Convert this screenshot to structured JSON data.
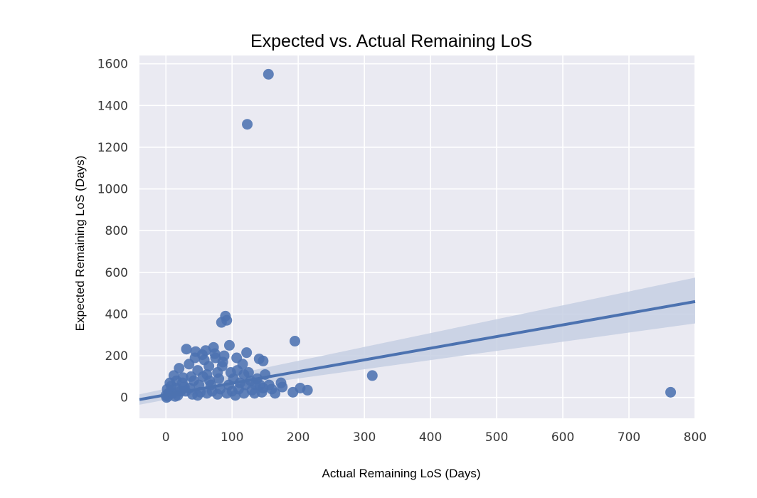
{
  "chart_data": {
    "type": "scatter",
    "title": "Expected vs. Actual Remaining LoS",
    "xlabel": "Actual Remaining LoS (Days)",
    "ylabel": "Expected Remaining LoS (Days)",
    "xlim": [
      -40,
      800
    ],
    "ylim": [
      -100,
      1640
    ],
    "xticks": [
      0,
      100,
      200,
      300,
      400,
      500,
      600,
      700,
      800
    ],
    "yticks": [
      0,
      200,
      400,
      600,
      800,
      1000,
      1200,
      1400,
      1600
    ],
    "grid": true,
    "colors": {
      "background": "#eaeaf2",
      "grid": "#ffffff",
      "points": "#4c72b0",
      "regression": "#4c72b0",
      "confidence_band": "#c6cfe3"
    },
    "points": [
      [
        155,
        1550
      ],
      [
        123,
        1310
      ],
      [
        195,
        270
      ],
      [
        312,
        105
      ],
      [
        763,
        25
      ],
      [
        90,
        390
      ],
      [
        92,
        370
      ],
      [
        84,
        360
      ],
      [
        96,
        250
      ],
      [
        122,
        215
      ],
      [
        31,
        232
      ],
      [
        45,
        220
      ],
      [
        72,
        240
      ],
      [
        60,
        225
      ],
      [
        55,
        205
      ],
      [
        141,
        185
      ],
      [
        147,
        175
      ],
      [
        107,
        190
      ],
      [
        116,
        160
      ],
      [
        203,
        45
      ],
      [
        214,
        35
      ],
      [
        192,
        25
      ],
      [
        174,
        70
      ],
      [
        176,
        50
      ],
      [
        160,
        40
      ],
      [
        165,
        20
      ],
      [
        156,
        60
      ],
      [
        135,
        60
      ],
      [
        130,
        35
      ],
      [
        145,
        25
      ],
      [
        142,
        60
      ],
      [
        120,
        60
      ],
      [
        110,
        40
      ],
      [
        118,
        20
      ],
      [
        102,
        90
      ],
      [
        100,
        30
      ],
      [
        105,
        10
      ],
      [
        112,
        70
      ],
      [
        125,
        120
      ],
      [
        20,
        140
      ],
      [
        12,
        105
      ],
      [
        8,
        55
      ],
      [
        25,
        70
      ],
      [
        30,
        30
      ],
      [
        38,
        100
      ],
      [
        35,
        160
      ],
      [
        42,
        80
      ],
      [
        48,
        130
      ],
      [
        50,
        60
      ],
      [
        58,
        180
      ],
      [
        62,
        110
      ],
      [
        65,
        150
      ],
      [
        68,
        60
      ],
      [
        75,
        190
      ],
      [
        78,
        120
      ],
      [
        80,
        90
      ],
      [
        85,
        150
      ],
      [
        88,
        200
      ],
      [
        95,
        60
      ],
      [
        0,
        10
      ],
      [
        2,
        40
      ],
      [
        4,
        20
      ],
      [
        6,
        70
      ],
      [
        1,
        0
      ],
      [
        3,
        5
      ],
      [
        10,
        20
      ],
      [
        15,
        45
      ],
      [
        18,
        10
      ],
      [
        22,
        30
      ],
      [
        28,
        50
      ],
      [
        40,
        15
      ],
      [
        52,
        25
      ],
      [
        70,
        30
      ],
      [
        82,
        40
      ],
      [
        98,
        120
      ],
      [
        66,
        80
      ],
      [
        74,
        210
      ],
      [
        86,
        170
      ],
      [
        56,
        100
      ],
      [
        44,
        190
      ],
      [
        36,
        45
      ],
      [
        26,
        95
      ],
      [
        16,
        80
      ],
      [
        14,
        5
      ],
      [
        62,
        20
      ],
      [
        48,
        10
      ],
      [
        78,
        15
      ],
      [
        92,
        20
      ],
      [
        108,
        130
      ],
      [
        118,
        110
      ],
      [
        128,
        80
      ],
      [
        138,
        90
      ],
      [
        150,
        110
      ],
      [
        134,
        20
      ],
      [
        147,
        45
      ]
    ],
    "regression": {
      "x_start": -40,
      "y_start": -10,
      "x_end": 800,
      "y_end": 460,
      "ci_at_end": [
        355,
        575
      ],
      "ci_near_data": [
        40,
        80
      ]
    }
  }
}
